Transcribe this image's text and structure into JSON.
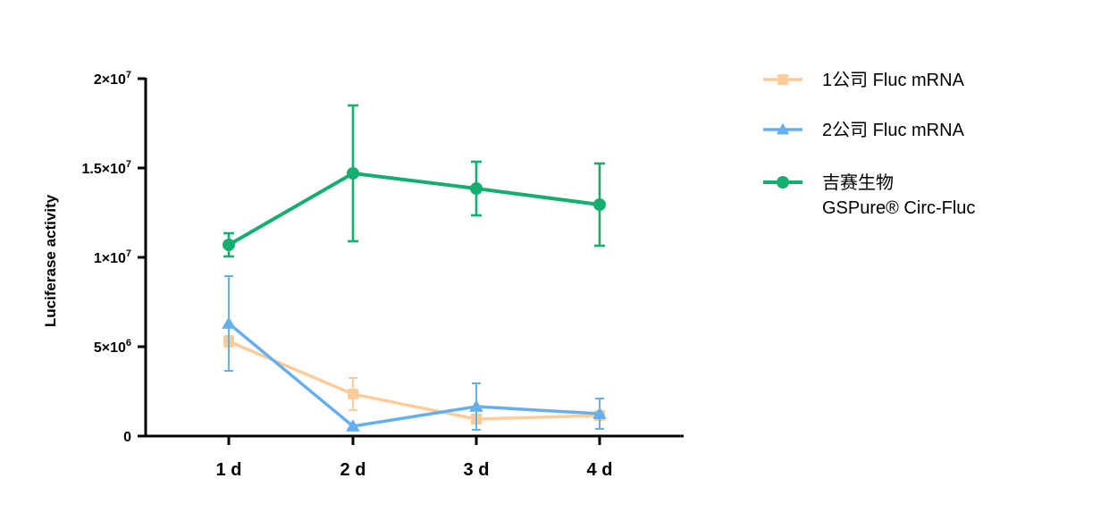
{
  "chart_data": {
    "type": "line",
    "ylabel": "Luciferase activity",
    "xlabel": "",
    "categories": [
      "1 d",
      "2 d",
      "3 d",
      "4 d"
    ],
    "ylim": [
      0,
      20000000
    ],
    "y_ticks": [
      {
        "value": 0,
        "label": "0",
        "exp": ""
      },
      {
        "value": 5000000,
        "label": "5×10",
        "exp": "6"
      },
      {
        "value": 10000000,
        "label": "1×10",
        "exp": "7"
      },
      {
        "value": 15000000,
        "label": "1.5×10",
        "exp": "7"
      },
      {
        "value": 20000000,
        "label": "2×10",
        "exp": "7"
      }
    ],
    "grid": false,
    "legend_position": "right",
    "series": [
      {
        "name": "1公司 Fluc mRNA",
        "color": "#FFCC99",
        "marker": "square",
        "values": [
          5300000,
          2350000,
          950000,
          1150000
        ],
        "errors": [
          300000,
          900000,
          250000,
          200000
        ]
      },
      {
        "name": "2公司 Fluc mRNA",
        "color": "#66AFEF",
        "marker": "triangle",
        "values": [
          6300000,
          550000,
          1650000,
          1250000
        ],
        "errors": [
          2650000,
          0,
          1300000,
          850000
        ]
      },
      {
        "name": "吉赛生物",
        "name_line2": "GSPure® Circ-Fluc",
        "color": "#14AE6E",
        "marker": "circle",
        "values": [
          10700000,
          14700000,
          13850000,
          12950000
        ],
        "errors": [
          650000,
          3800000,
          1500000,
          2300000
        ]
      }
    ]
  }
}
